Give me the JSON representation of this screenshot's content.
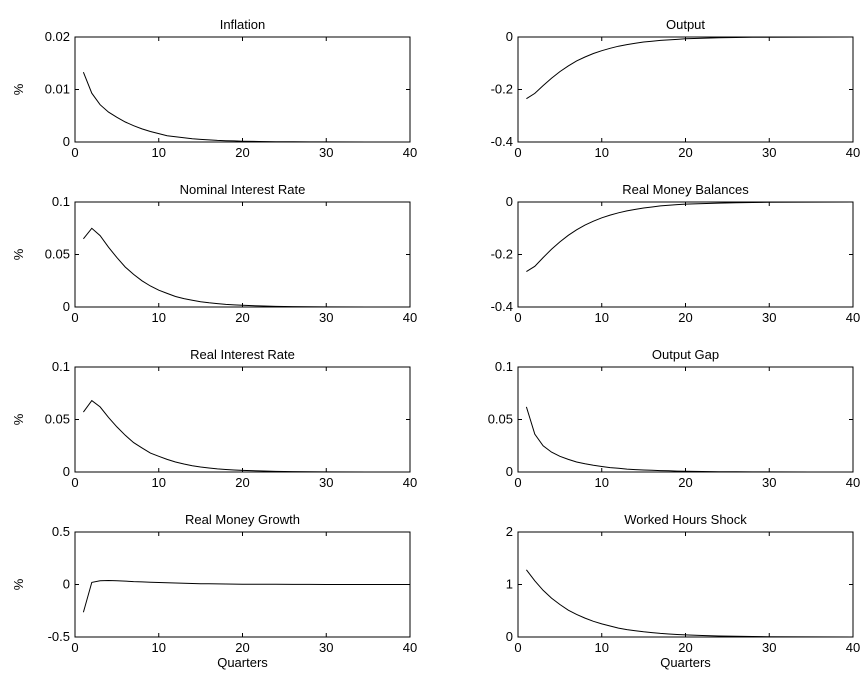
{
  "chart_data": [
    {
      "type": "line",
      "title": "Inflation",
      "xlabel": "",
      "ylabel": "%",
      "xlim": [
        0,
        40
      ],
      "ylim": [
        0,
        0.02
      ],
      "xticks": [
        0,
        10,
        20,
        30,
        40
      ],
      "yticks": [
        0,
        0.01,
        0.02
      ],
      "xtick_labels": [
        "0",
        "10",
        "20",
        "30",
        "40"
      ],
      "ytick_labels": [
        "0",
        "0.01",
        "0.02"
      ],
      "x": [
        1,
        2,
        3,
        4,
        5,
        6,
        7,
        8,
        9,
        10,
        11,
        12,
        13,
        14,
        15,
        16,
        17,
        18,
        19,
        20,
        22,
        24,
        26,
        28,
        30,
        35,
        40
      ],
      "y": [
        0.0133,
        0.0093,
        0.0071,
        0.0057,
        0.0047,
        0.0038,
        0.0031,
        0.0025,
        0.002,
        0.0016,
        0.0012,
        0.001,
        0.0008,
        0.0006,
        0.0005,
        0.0004,
        0.0003,
        0.00025,
        0.0002,
        0.00015,
        0.0001,
        6e-05,
        3e-05,
        2e-05,
        1e-05,
        0.0,
        0.0
      ]
    },
    {
      "type": "line",
      "title": "Output",
      "xlabel": "",
      "ylabel": "",
      "xlim": [
        0,
        40
      ],
      "ylim": [
        -0.4,
        0
      ],
      "xticks": [
        0,
        10,
        20,
        30,
        40
      ],
      "yticks": [
        -0.4,
        -0.2,
        0
      ],
      "xtick_labels": [
        "0",
        "10",
        "20",
        "30",
        "40"
      ],
      "ytick_labels": [
        "-0.4",
        "-0.2",
        "0"
      ],
      "x": [
        1,
        2,
        3,
        4,
        5,
        6,
        7,
        8,
        9,
        10,
        11,
        12,
        13,
        14,
        15,
        16,
        17,
        18,
        19,
        20,
        22,
        24,
        26,
        28,
        30,
        35,
        40
      ],
      "y": [
        -0.235,
        -0.215,
        -0.185,
        -0.157,
        -0.132,
        -0.11,
        -0.091,
        -0.076,
        -0.063,
        -0.052,
        -0.043,
        -0.035,
        -0.029,
        -0.024,
        -0.019,
        -0.016,
        -0.013,
        -0.011,
        -0.009,
        -0.007,
        -0.005,
        -0.003,
        -0.002,
        -0.001,
        -0.0008,
        -0.0003,
        0.0
      ]
    },
    {
      "type": "line",
      "title": "Nominal Interest Rate",
      "xlabel": "",
      "ylabel": "%",
      "xlim": [
        0,
        40
      ],
      "ylim": [
        0,
        0.1
      ],
      "xticks": [
        0,
        10,
        20,
        30,
        40
      ],
      "yticks": [
        0,
        0.05,
        0.1
      ],
      "xtick_labels": [
        "0",
        "10",
        "20",
        "30",
        "40"
      ],
      "ytick_labels": [
        "0",
        "0.05",
        "0.1"
      ],
      "x": [
        1,
        2,
        3,
        4,
        5,
        6,
        7,
        8,
        9,
        10,
        11,
        12,
        13,
        14,
        15,
        16,
        17,
        18,
        19,
        20,
        22,
        24,
        26,
        28,
        30,
        35,
        40
      ],
      "y": [
        0.065,
        0.075,
        0.068,
        0.057,
        0.047,
        0.038,
        0.031,
        0.025,
        0.02,
        0.016,
        0.013,
        0.01,
        0.008,
        0.0065,
        0.005,
        0.004,
        0.0032,
        0.0025,
        0.002,
        0.0016,
        0.001,
        0.0006,
        0.0004,
        0.0002,
        0.0001,
        0.0,
        0.0
      ]
    },
    {
      "type": "line",
      "title": "Real Money Balances",
      "xlabel": "",
      "ylabel": "",
      "xlim": [
        0,
        40
      ],
      "ylim": [
        -0.4,
        0
      ],
      "xticks": [
        0,
        10,
        20,
        30,
        40
      ],
      "yticks": [
        -0.4,
        -0.2,
        0
      ],
      "xtick_labels": [
        "0",
        "10",
        "20",
        "30",
        "40"
      ],
      "ytick_labels": [
        "-0.4",
        "-0.2",
        "0"
      ],
      "x": [
        1,
        2,
        3,
        4,
        5,
        6,
        7,
        8,
        9,
        10,
        11,
        12,
        13,
        14,
        15,
        16,
        17,
        18,
        19,
        20,
        22,
        24,
        26,
        28,
        30,
        35,
        40
      ],
      "y": [
        -0.265,
        -0.245,
        -0.212,
        -0.18,
        -0.152,
        -0.127,
        -0.106,
        -0.088,
        -0.073,
        -0.06,
        -0.05,
        -0.041,
        -0.034,
        -0.028,
        -0.023,
        -0.019,
        -0.015,
        -0.012,
        -0.01,
        -0.008,
        -0.006,
        -0.004,
        -0.003,
        -0.002,
        -0.001,
        -0.0004,
        0.0
      ]
    },
    {
      "type": "line",
      "title": "Real Interest Rate",
      "xlabel": "",
      "ylabel": "%",
      "xlim": [
        0,
        40
      ],
      "ylim": [
        0,
        0.1
      ],
      "xticks": [
        0,
        10,
        20,
        30,
        40
      ],
      "yticks": [
        0,
        0.05,
        0.1
      ],
      "xtick_labels": [
        "0",
        "10",
        "20",
        "30",
        "40"
      ],
      "ytick_labels": [
        "0",
        "0.05",
        "0.1"
      ],
      "x": [
        1,
        2,
        3,
        4,
        5,
        6,
        7,
        8,
        9,
        10,
        11,
        12,
        13,
        14,
        15,
        16,
        17,
        18,
        19,
        20,
        22,
        24,
        26,
        28,
        30,
        35,
        40
      ],
      "y": [
        0.057,
        0.068,
        0.062,
        0.052,
        0.043,
        0.035,
        0.028,
        0.023,
        0.018,
        0.015,
        0.012,
        0.0095,
        0.0076,
        0.006,
        0.0048,
        0.0038,
        0.003,
        0.0024,
        0.0019,
        0.0015,
        0.001,
        0.0006,
        0.0004,
        0.0002,
        0.0001,
        0.0,
        0.0
      ]
    },
    {
      "type": "line",
      "title": "Output Gap",
      "xlabel": "",
      "ylabel": "",
      "xlim": [
        0,
        40
      ],
      "ylim": [
        0,
        0.1
      ],
      "xticks": [
        0,
        10,
        20,
        30,
        40
      ],
      "yticks": [
        0,
        0.05,
        0.1
      ],
      "xtick_labels": [
        "0",
        "10",
        "20",
        "30",
        "40"
      ],
      "ytick_labels": [
        "0",
        "0.05",
        "0.1"
      ],
      "x": [
        1,
        2,
        3,
        4,
        5,
        6,
        7,
        8,
        9,
        10,
        11,
        12,
        13,
        14,
        15,
        16,
        17,
        18,
        19,
        20,
        22,
        24,
        26,
        28,
        30,
        35,
        40
      ],
      "y": [
        0.062,
        0.036,
        0.025,
        0.019,
        0.015,
        0.012,
        0.0095,
        0.0078,
        0.0064,
        0.0052,
        0.0042,
        0.0035,
        0.0028,
        0.0023,
        0.0019,
        0.0016,
        0.0013,
        0.0011,
        0.0009,
        0.0007,
        0.0005,
        0.0003,
        0.0002,
        0.0001,
        0.0001,
        0.0,
        0.0
      ]
    },
    {
      "type": "line",
      "title": "Real Money Growth",
      "xlabel": "Quarters",
      "ylabel": "%",
      "xlim": [
        0,
        40
      ],
      "ylim": [
        -0.5,
        0.5
      ],
      "xticks": [
        0,
        10,
        20,
        30,
        40
      ],
      "yticks": [
        -0.5,
        0,
        0.5
      ],
      "xtick_labels": [
        "0",
        "10",
        "20",
        "30",
        "40"
      ],
      "ytick_labels": [
        "-0.5",
        "0",
        "0.5"
      ],
      "x": [
        1,
        2,
        3,
        4,
        5,
        6,
        7,
        8,
        9,
        10,
        11,
        12,
        13,
        14,
        15,
        16,
        17,
        18,
        19,
        20,
        22,
        24,
        26,
        28,
        30,
        35,
        40
      ],
      "y": [
        -0.265,
        0.02,
        0.035,
        0.038,
        0.036,
        0.032,
        0.028,
        0.025,
        0.022,
        0.019,
        0.016,
        0.014,
        0.012,
        0.01,
        0.008,
        0.007,
        0.006,
        0.005,
        0.004,
        0.003,
        0.002,
        0.0015,
        0.001,
        0.0006,
        0.0003,
        0.0,
        0.0
      ]
    },
    {
      "type": "line",
      "title": "Worked Hours Shock",
      "xlabel": "Quarters",
      "ylabel": "",
      "xlim": [
        0,
        40
      ],
      "ylim": [
        0,
        2
      ],
      "xticks": [
        0,
        10,
        20,
        30,
        40
      ],
      "yticks": [
        0,
        1,
        2
      ],
      "xtick_labels": [
        "0",
        "10",
        "20",
        "30",
        "40"
      ],
      "ytick_labels": [
        "0",
        "1",
        "2"
      ],
      "x": [
        1,
        2,
        3,
        4,
        5,
        6,
        7,
        8,
        9,
        10,
        11,
        12,
        13,
        14,
        15,
        16,
        17,
        18,
        19,
        20,
        22,
        24,
        26,
        28,
        30,
        35,
        40
      ],
      "y": [
        1.28,
        1.07,
        0.89,
        0.74,
        0.62,
        0.51,
        0.43,
        0.36,
        0.3,
        0.25,
        0.21,
        0.17,
        0.14,
        0.12,
        0.1,
        0.083,
        0.069,
        0.058,
        0.048,
        0.04,
        0.028,
        0.019,
        0.013,
        0.009,
        0.006,
        0.002,
        0.0005
      ]
    }
  ]
}
